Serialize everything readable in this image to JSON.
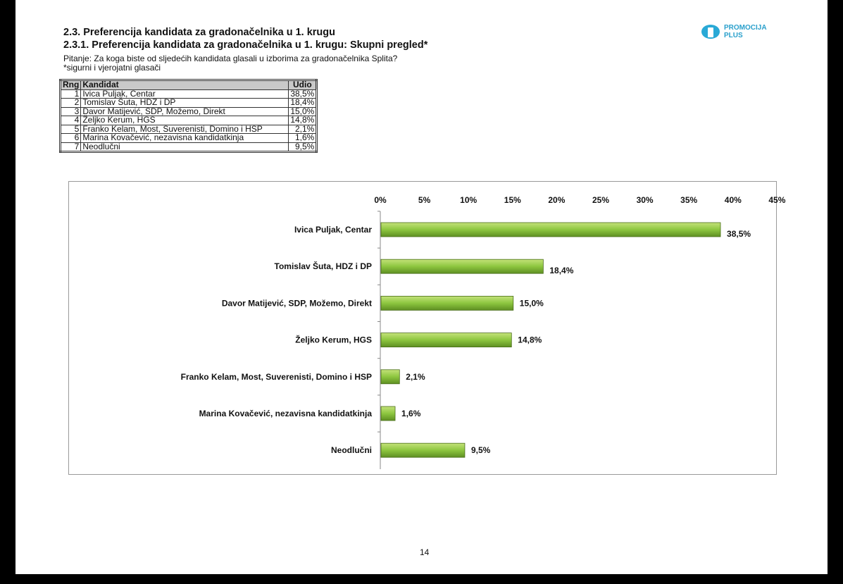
{
  "header": {
    "title": "2.3. Preferencija kandidata za gradonačelnika u 1. krugu",
    "subtitle": "2.3.1. Preferencija kandidata za gradonačelnika u 1. krugu: Skupni pregled*",
    "question": "Pitanje: Za koga biste od sljedećih kandidata glasali u izborima za gradonačelnika Splita?",
    "note": "*sigurni i vjerojatni glasači"
  },
  "logo": {
    "line1": "PROMOCIJA",
    "line2": "PLUS",
    "color": "#29a9d6"
  },
  "table": {
    "headers": [
      "Rng",
      "Kandidat",
      "Udio"
    ],
    "rows": [
      [
        "1",
        "Ivica Puljak, Centar",
        "38,5%"
      ],
      [
        "2",
        "Tomislav Šuta, HDZ i DP",
        "18,4%"
      ],
      [
        "3",
        "Davor Matijević, SDP, Možemo, Direkt",
        "15,0%"
      ],
      [
        "4",
        "Željko Kerum, HGS",
        "14,8%"
      ],
      [
        "5",
        "Franko Kelam, Most, Suverenisti, Domino i HSP",
        "2,1%"
      ],
      [
        "6",
        "Marina Kovačević, nezavisna kandidatkinja",
        "1,6%"
      ],
      [
        "7",
        "Neodlučni",
        "9,5%"
      ]
    ]
  },
  "chart_data": {
    "type": "bar",
    "orientation": "horizontal",
    "categories": [
      "Ivica Puljak, Centar",
      "Tomislav Šuta, HDZ i DP",
      "Davor Matijević, SDP, Možemo, Direkt",
      "Željko Kerum, HGS",
      "Franko Kelam, Most, Suverenisti, Domino i HSP",
      "Marina Kovačević, nezavisna kandidatkinja",
      "Neodlučni"
    ],
    "values": [
      38.5,
      18.4,
      15.0,
      14.8,
      2.1,
      1.6,
      9.5
    ],
    "data_labels": [
      "38,5%",
      "18,4%",
      "15,0%",
      "14,8%",
      "2,1%",
      "1,6%",
      "9,5%"
    ],
    "xlim": [
      0,
      45
    ],
    "ticks": [
      "0%",
      "5%",
      "10%",
      "15%",
      "20%",
      "25%",
      "30%",
      "35%",
      "40%",
      "45%"
    ],
    "axis_position": "top",
    "grid": false,
    "bar_color": "#8dc63f"
  },
  "page_number": "14"
}
